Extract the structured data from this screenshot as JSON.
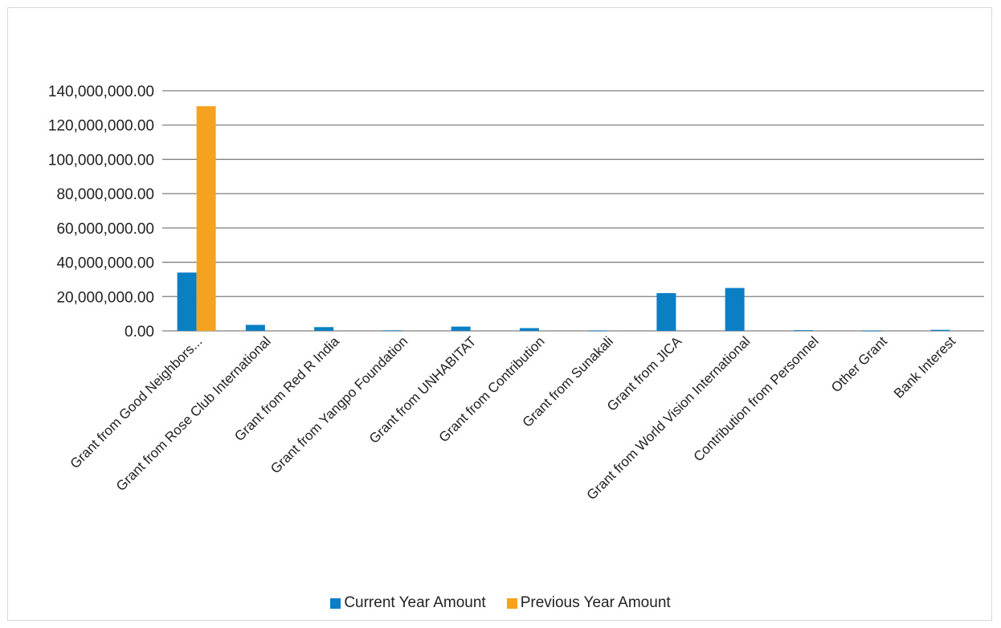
{
  "chart_data": {
    "type": "bar",
    "title": "",
    "xlabel": "",
    "ylabel": "",
    "ylim": [
      0,
      140000000
    ],
    "yticks": [
      "0.00",
      "20,000,000.00",
      "40,000,000.00",
      "60,000,000.00",
      "80,000,000.00",
      "100,000,000.00",
      "120,000,000.00",
      "140,000,000.00"
    ],
    "categories": [
      "Grant from Good Neighbors...",
      "Grant from Rose Club International",
      "Grant from Red R India",
      "Grant from Yangpo Foundation",
      "Grant from UNHABITAT",
      "Grant from Contribution",
      "Grant from Sunakali",
      "Grant from JICA",
      "Grant from World Vision International",
      "Contribution from Personnel",
      "Other Grant",
      "Bank Interest"
    ],
    "series": [
      {
        "name": "Current Year Amount",
        "color": "#0a7fc4",
        "values": [
          34000000,
          3500000,
          2200000,
          300000,
          2500000,
          1600000,
          150000,
          22000000,
          25000000,
          400000,
          100000,
          600000
        ]
      },
      {
        "name": "Previous Year Amount",
        "color": "#f5a31f",
        "values": [
          131000000,
          0,
          0,
          0,
          0,
          0,
          0,
          0,
          0,
          0,
          0,
          0
        ]
      }
    ],
    "grid": true,
    "legend_position": "bottom"
  }
}
